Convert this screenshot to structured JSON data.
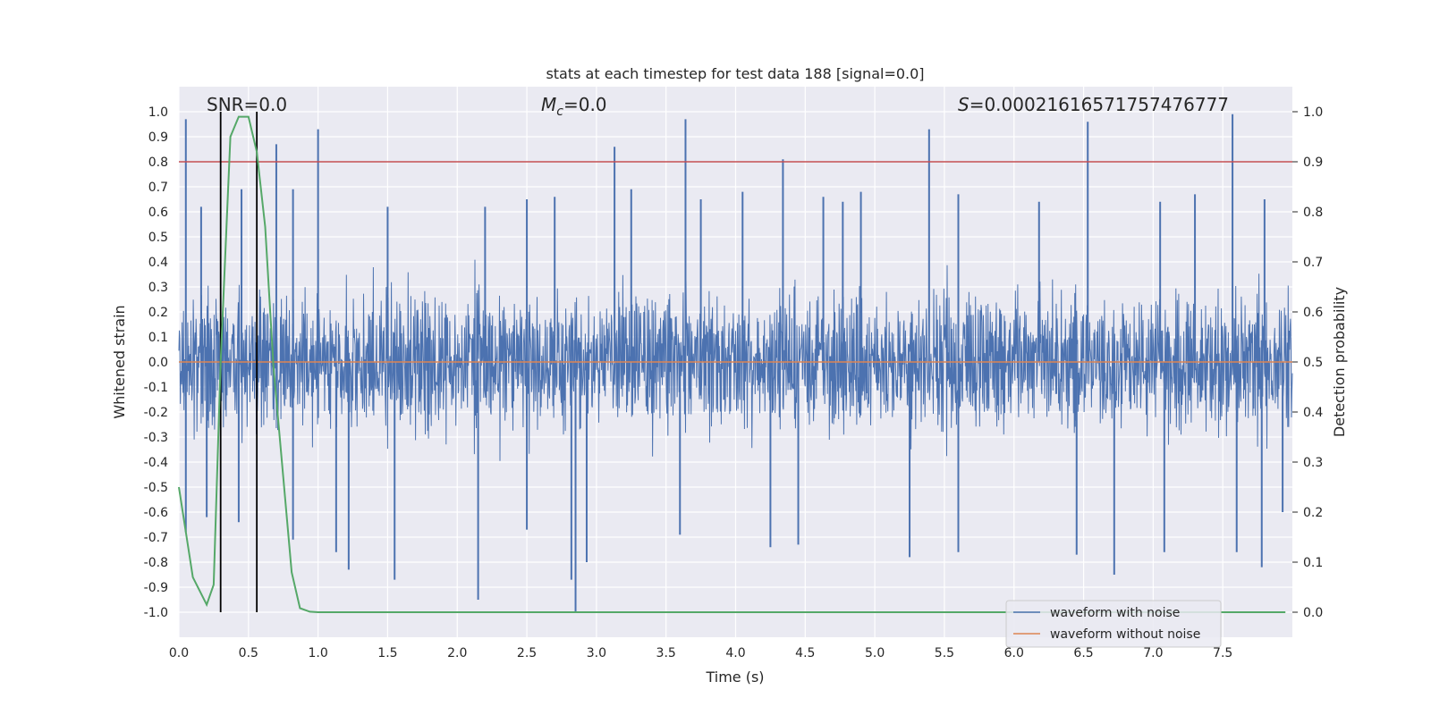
{
  "chart_data": {
    "type": "line",
    "title": "stats at each timestep for test data 188 [signal=0.0]",
    "xlabel": "Time (s)",
    "ylabel": "Whitened strain",
    "y2label": "Detection probability",
    "xlim": [
      0.0,
      8.0
    ],
    "ylim": [
      -1.1,
      1.1
    ],
    "y2lim": [
      -0.05,
      1.05
    ],
    "xticks": [
      "0.0",
      "0.5",
      "1.0",
      "1.5",
      "2.0",
      "2.5",
      "3.0",
      "3.5",
      "4.0",
      "4.5",
      "5.0",
      "5.5",
      "6.0",
      "6.5",
      "7.0",
      "7.5"
    ],
    "yticks": [
      "1.0",
      "0.9",
      "0.8",
      "0.7",
      "0.6",
      "0.5",
      "0.4",
      "0.3",
      "0.2",
      "0.1",
      "0.0",
      "-0.1",
      "-0.2",
      "-0.3",
      "-0.4",
      "-0.5",
      "-0.6",
      "-0.7",
      "-0.8",
      "-0.9",
      "-1.0"
    ],
    "y2ticks": [
      "1.0",
      "0.9",
      "0.8",
      "0.7",
      "0.6",
      "0.5",
      "0.4",
      "0.3",
      "0.2",
      "0.1",
      "0.0"
    ],
    "annotations": {
      "snr": "SNR=0.0",
      "mc_symbol": "M",
      "mc_sub": "c",
      "mc_value": "=0.0",
      "s_symbol": "S",
      "s_value": "=0.00021616571757476777"
    },
    "threshold": {
      "value": 0.9,
      "axis": "y2",
      "color": "#c44e52"
    },
    "vertical_lines": [
      0.3,
      0.56
    ],
    "series": [
      {
        "name": "waveform with noise",
        "color": "#4c72b0",
        "axis": "y",
        "description": "whitened noise, amplitude mostly within ±0.5 with spikes to about ±1.0",
        "peaks_pos": [
          [
            0.05,
            0.97
          ],
          [
            0.16,
            0.62
          ],
          [
            0.45,
            0.69
          ],
          [
            0.7,
            0.87
          ],
          [
            0.82,
            0.69
          ],
          [
            1.0,
            0.93
          ],
          [
            1.5,
            0.62
          ],
          [
            2.2,
            0.62
          ],
          [
            2.5,
            0.65
          ],
          [
            2.7,
            0.66
          ],
          [
            3.13,
            0.86
          ],
          [
            3.25,
            0.69
          ],
          [
            3.64,
            0.97
          ],
          [
            3.75,
            0.65
          ],
          [
            4.05,
            0.68
          ],
          [
            4.34,
            0.81
          ],
          [
            4.63,
            0.66
          ],
          [
            4.77,
            0.64
          ],
          [
            4.9,
            0.68
          ],
          [
            5.39,
            0.93
          ],
          [
            5.6,
            0.67
          ],
          [
            6.18,
            0.64
          ],
          [
            6.53,
            0.96
          ],
          [
            7.05,
            0.64
          ],
          [
            7.3,
            0.67
          ],
          [
            7.57,
            0.99
          ],
          [
            7.8,
            0.65
          ]
        ],
        "peaks_neg": [
          [
            0.05,
            -0.68
          ],
          [
            0.2,
            -0.62
          ],
          [
            0.43,
            -0.64
          ],
          [
            0.82,
            -0.71
          ],
          [
            1.13,
            -0.76
          ],
          [
            1.22,
            -0.83
          ],
          [
            1.55,
            -0.87
          ],
          [
            2.15,
            -0.95
          ],
          [
            2.5,
            -0.67
          ],
          [
            2.82,
            -0.87
          ],
          [
            2.85,
            -1.0
          ],
          [
            2.93,
            -0.8
          ],
          [
            3.6,
            -0.69
          ],
          [
            4.25,
            -0.74
          ],
          [
            4.45,
            -0.73
          ],
          [
            5.25,
            -0.78
          ],
          [
            5.6,
            -0.76
          ],
          [
            6.45,
            -0.77
          ],
          [
            6.72,
            -0.85
          ],
          [
            7.08,
            -0.76
          ],
          [
            7.6,
            -0.76
          ],
          [
            7.78,
            -0.82
          ],
          [
            7.93,
            -0.6
          ]
        ]
      },
      {
        "name": "waveform without noise",
        "color": "#dd8452",
        "axis": "y",
        "x": [
          0.0,
          8.0
        ],
        "values": [
          0.0,
          0.0
        ]
      },
      {
        "name": "detection probability",
        "color": "#55a868",
        "axis": "y2",
        "x": [
          0.0,
          0.05,
          0.1,
          0.2,
          0.25,
          0.3,
          0.37,
          0.43,
          0.5,
          0.56,
          0.62,
          0.68,
          0.75,
          0.81,
          0.87,
          0.94,
          1.0,
          2.0,
          3.0,
          4.0,
          5.0,
          6.0,
          7.0,
          7.95
        ],
        "values": [
          0.25,
          0.16,
          0.07,
          0.015,
          0.055,
          0.5,
          0.95,
          0.99,
          0.99,
          0.92,
          0.77,
          0.49,
          0.27,
          0.08,
          0.008,
          0.001,
          0.0,
          0.0,
          0.0,
          0.0,
          0.0,
          0.0,
          0.0,
          0.0
        ]
      }
    ],
    "legend": {
      "location": "lower-right",
      "entries": [
        "waveform with noise",
        "waveform without noise"
      ]
    },
    "grid": true
  },
  "colors": {
    "plot_bg": "#eaeaf2",
    "grid": "#ffffff",
    "text": "#262626"
  }
}
